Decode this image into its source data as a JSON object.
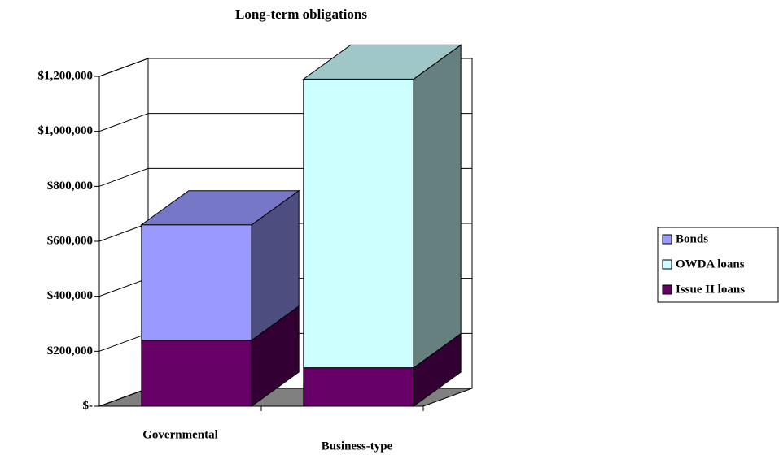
{
  "chart_data": {
    "type": "bar3d_stacked",
    "title": "Long-term obligations",
    "categories": [
      "Governmental",
      "Business-type"
    ],
    "series": [
      {
        "name": "Issue II loans",
        "color": "#660066",
        "values": [
          240000,
          140000
        ]
      },
      {
        "name": "OWDA loans",
        "color": "#ccffff",
        "values": [
          0,
          1050000
        ]
      },
      {
        "name": "Bonds",
        "color": "#9999ff",
        "values": [
          420000,
          0
        ]
      }
    ],
    "legend_order": [
      2,
      1,
      0
    ],
    "ylim": [
      0,
      1200000
    ],
    "yticks": [
      {
        "value": 0,
        "label": "$-"
      },
      {
        "value": 200000,
        "label": "$200,000"
      },
      {
        "value": 400000,
        "label": "$400,000"
      },
      {
        "value": 600000,
        "label": "$600,000"
      },
      {
        "value": 800000,
        "label": "$800,000"
      },
      {
        "value": 1000000,
        "label": "$1,000,000"
      },
      {
        "value": 1200000,
        "label": "$1,200,000"
      }
    ],
    "grid": true,
    "legend": "right"
  }
}
